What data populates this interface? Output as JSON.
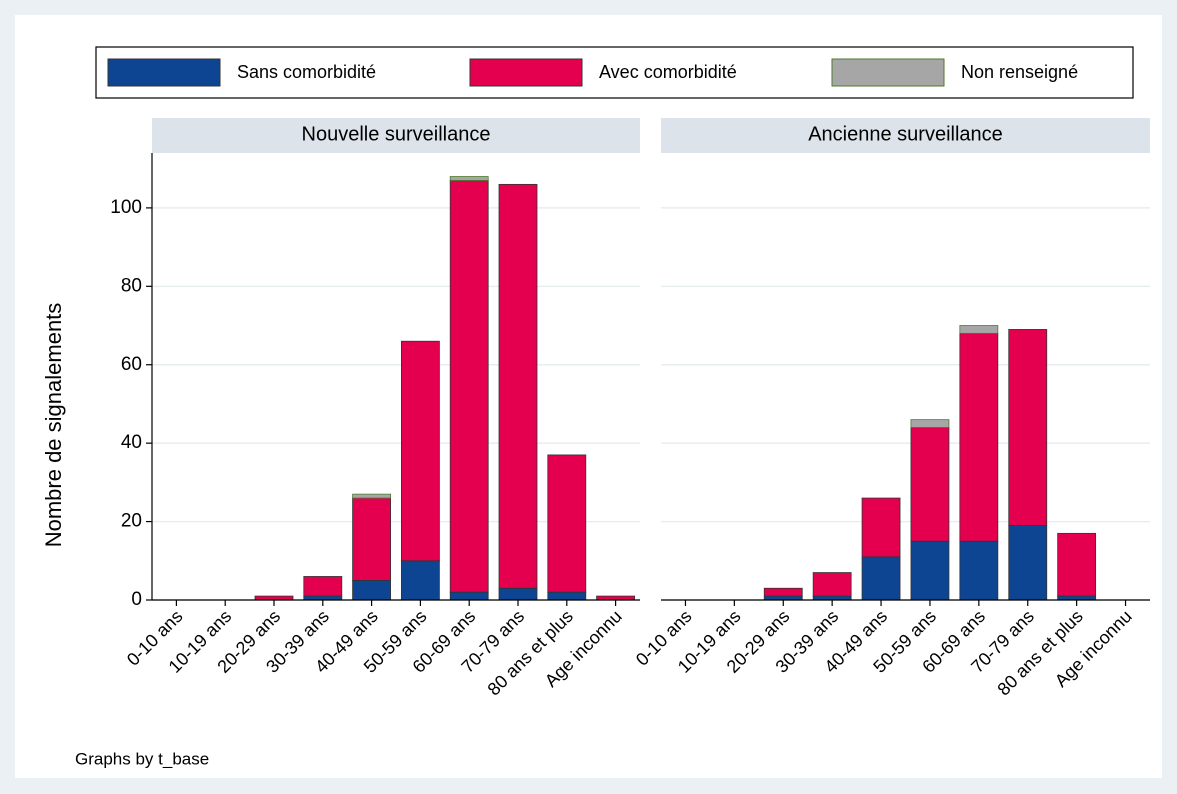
{
  "chart_data": {
    "type": "bar",
    "stacked": true,
    "ylabel": "Nombre de signalements",
    "note": "Graphs by t_base",
    "ylim": [
      0,
      114
    ],
    "yticks": [
      0,
      20,
      40,
      60,
      80,
      100
    ],
    "grid": true,
    "legend": {
      "position": "top",
      "entries": [
        {
          "name": "Sans comorbidité",
          "color": "#0d4592"
        },
        {
          "name": "Avec comorbidité",
          "color": "#e4004f"
        },
        {
          "name": "Non renseigné",
          "color": "#a6a6a6"
        }
      ]
    },
    "panels": [
      {
        "title": "Nouvelle surveillance",
        "categories": [
          "0-10 ans",
          "10-19 ans",
          "20-29 ans",
          "30-39 ans",
          "40-49 ans",
          "50-59 ans",
          "60-69 ans",
          "70-79 ans",
          "80 ans et plus",
          "Age inconnu"
        ],
        "series": [
          {
            "values": [
              0,
              0,
              0,
              1,
              5,
              10,
              2,
              3,
              2,
              0
            ]
          },
          {
            "values": [
              0,
              0,
              1,
              5,
              21,
              56,
              105,
              103,
              35,
              1
            ]
          },
          {
            "values": [
              0,
              0,
              0,
              0,
              1,
              0,
              1,
              0,
              0,
              0
            ]
          }
        ]
      },
      {
        "title": "Ancienne surveillance",
        "categories": [
          "0-10 ans",
          "10-19 ans",
          "20-29 ans",
          "30-39 ans",
          "40-49 ans",
          "50-59 ans",
          "60-69 ans",
          "70-79 ans",
          "80 ans et plus",
          "Age inconnu"
        ],
        "series": [
          {
            "values": [
              0,
              0,
              1,
              1,
              11,
              15,
              15,
              19,
              1,
              0
            ]
          },
          {
            "values": [
              0,
              0,
              2,
              6,
              15,
              29,
              53,
              50,
              16,
              0
            ]
          },
          {
            "values": [
              0,
              0,
              0,
              0,
              0,
              2,
              2,
              0,
              0,
              0
            ]
          }
        ]
      }
    ]
  }
}
